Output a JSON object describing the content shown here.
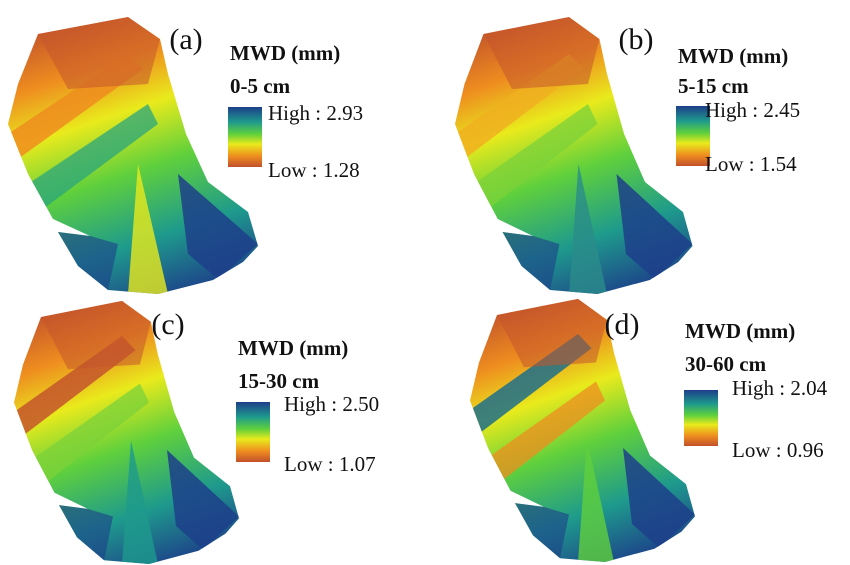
{
  "panels": [
    {
      "label": "(a)",
      "title": "MWD (mm)",
      "depth": "0-5 cm",
      "high": "High : 2.93",
      "low": "Low : 1.28"
    },
    {
      "label": "(b)",
      "title": "MWD (mm)",
      "depth": "5-15 cm",
      "high": "High : 2.45",
      "low": "Low : 1.54"
    },
    {
      "label": "(c)",
      "title": "MWD (mm)",
      "depth": "15-30 cm",
      "high": "High : 2.50",
      "low": "Low : 1.07"
    },
    {
      "label": "(d)",
      "title": "MWD (mm)",
      "depth": "30-60 cm",
      "high": "High : 2.04",
      "low": "Low : 0.96"
    }
  ]
}
